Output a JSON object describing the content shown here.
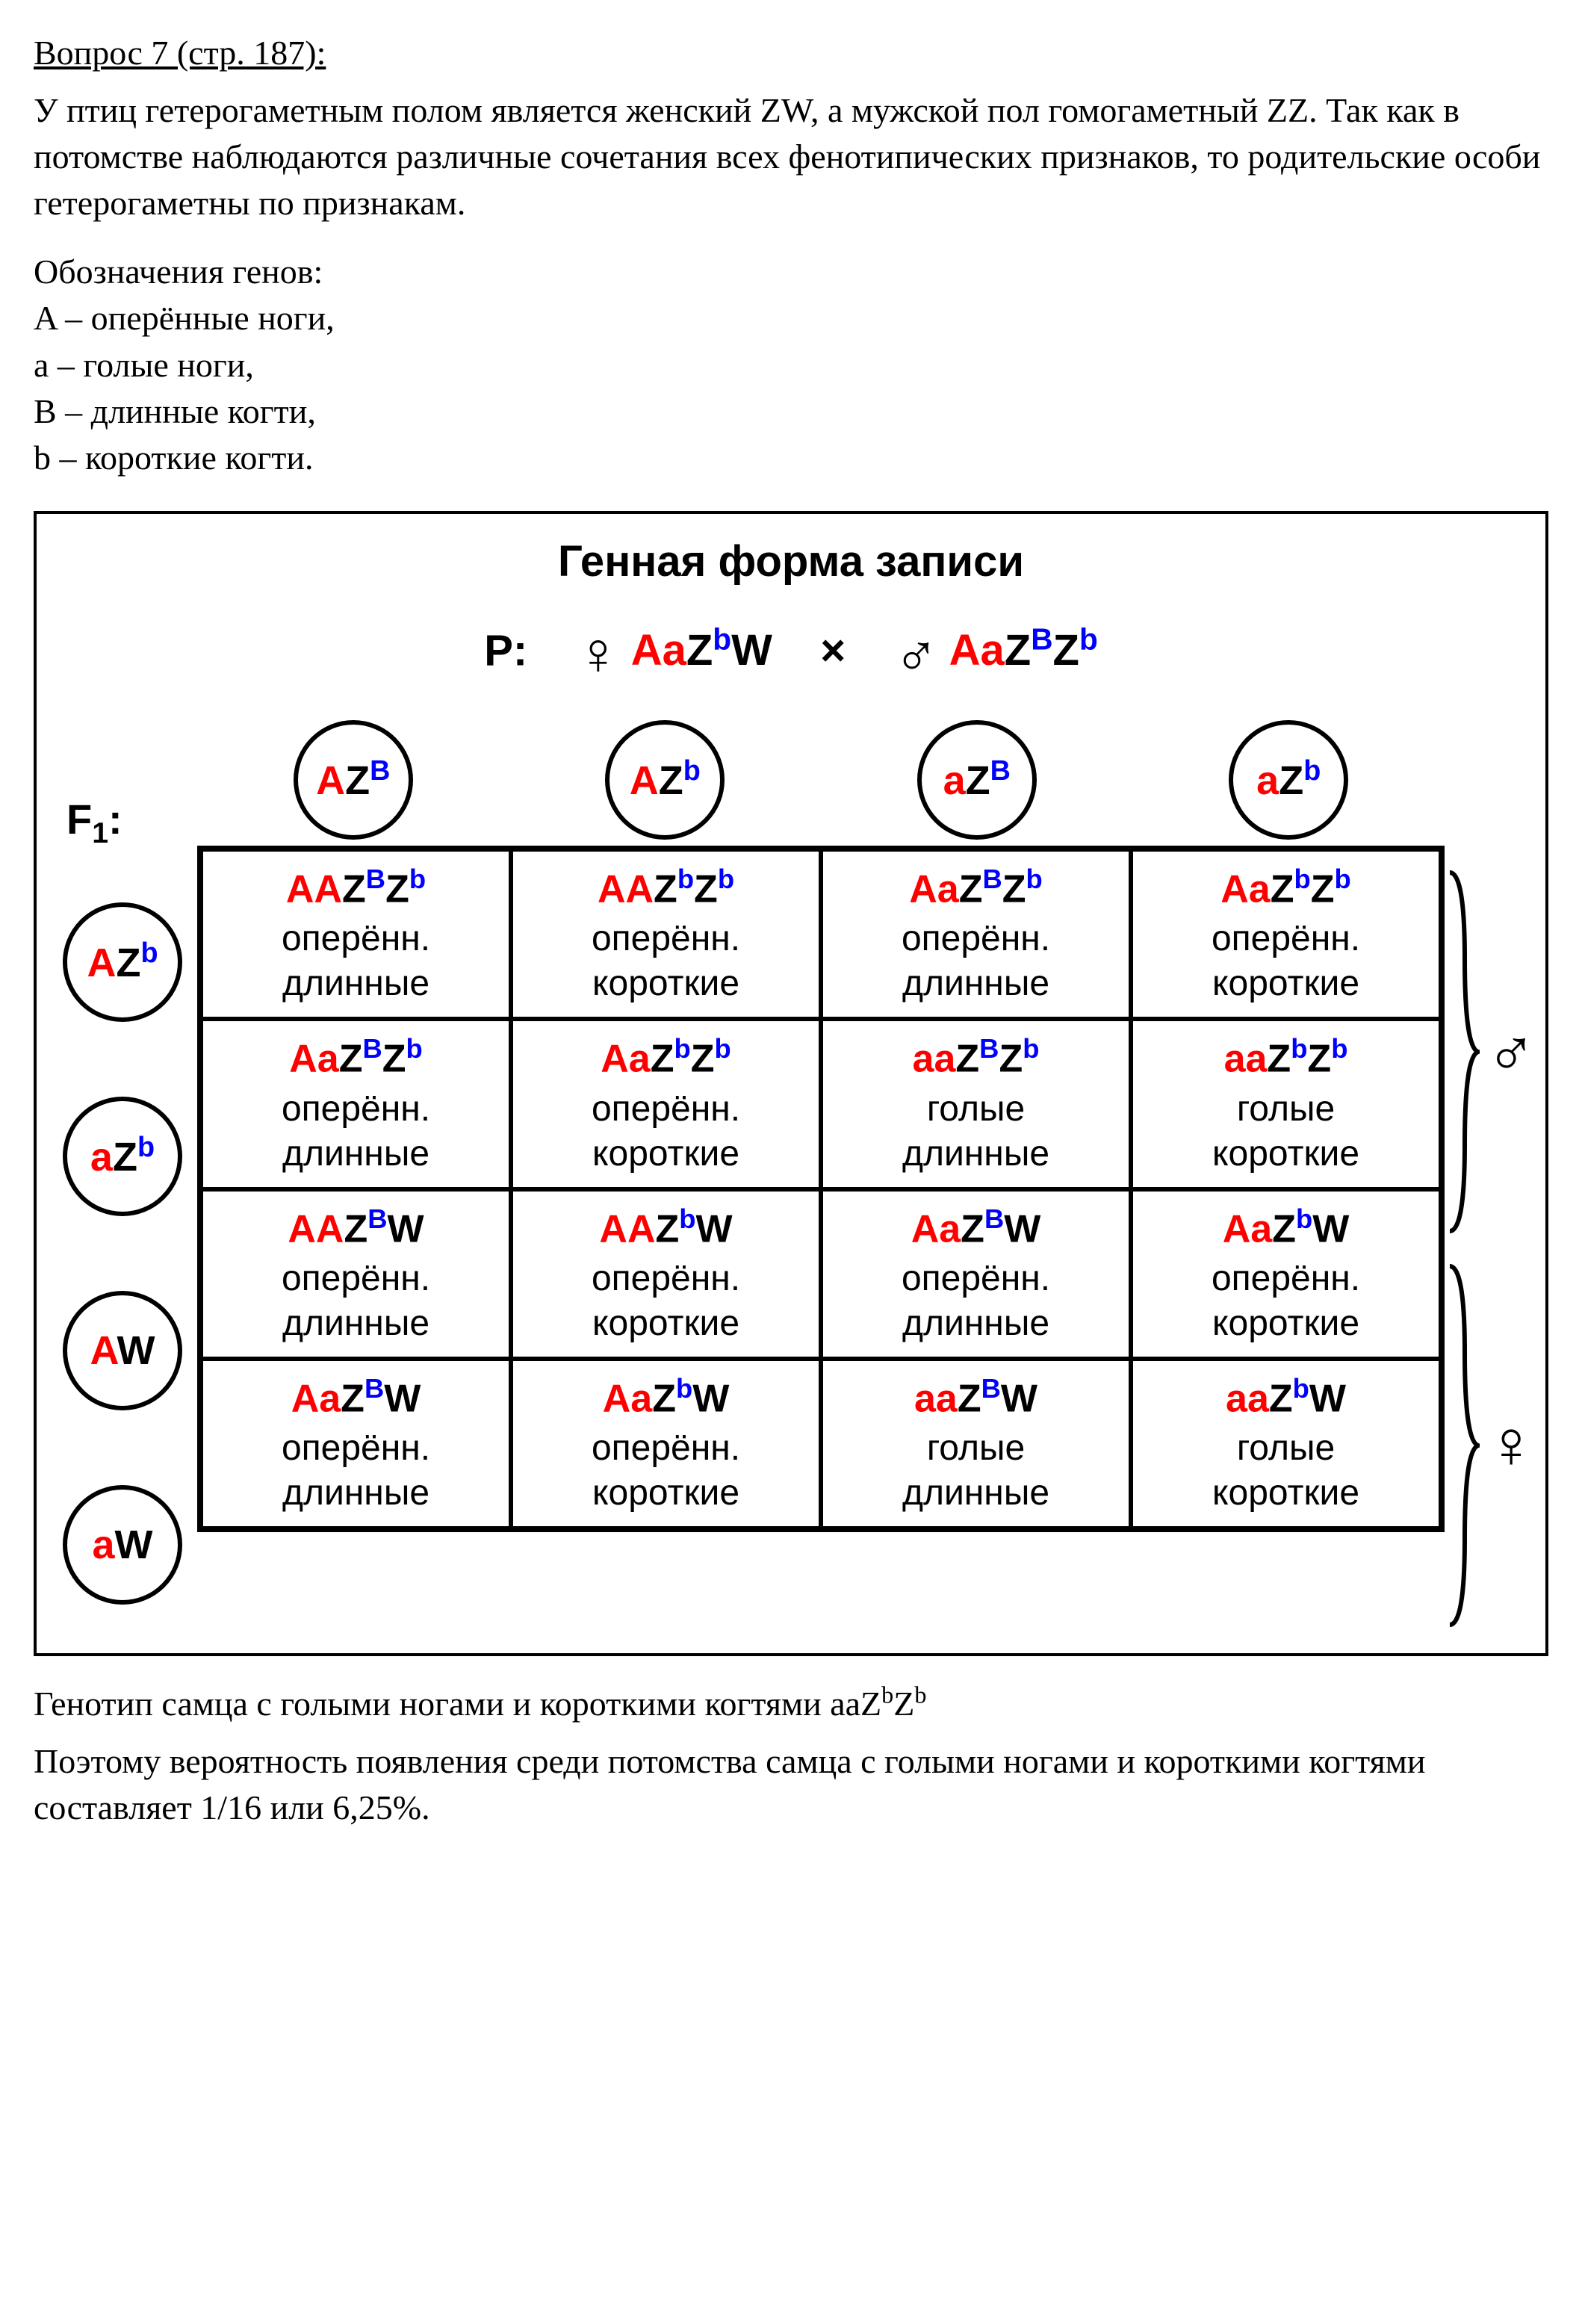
{
  "heading": "Вопрос 7 (стр. 187):",
  "intro": "У птиц гетерогаметным полом является женский ZW, а мужской пол гомогаметный ZZ. Так как в потомстве наблюдаются различные сочетания всех фенотипических признаков, то родительские особи гетерогаметны по признакам.",
  "defs_title": "Обозначения генов:",
  "defs": [
    "A – оперённые ноги,",
    "a – голые ноги,",
    "B – длинные когти,",
    "b – короткие когти."
  ],
  "diagram_title": "Генная форма записи",
  "parents": {
    "label": "P:",
    "female_geno": {
      "A": "A",
      "a": "a",
      "Z": "Z",
      "sup": "b",
      "W": "W"
    },
    "cross": "×",
    "male_geno": {
      "A": "A",
      "a": "a",
      "Z1": "Z",
      "sup1": "B",
      "Z2": "Z",
      "sup2": "b"
    }
  },
  "top_gametes": [
    {
      "a1": "A",
      "z": "Z",
      "sup": "B",
      "a1c": "red",
      "supc": "blue"
    },
    {
      "a1": "A",
      "z": "Z",
      "sup": "b",
      "a1c": "red",
      "supc": "blue"
    },
    {
      "a1": "a",
      "z": "Z",
      "sup": "B",
      "a1c": "red",
      "supc": "blue"
    },
    {
      "a1": "a",
      "z": "Z",
      "sup": "b",
      "a1c": "red",
      "supc": "blue"
    }
  ],
  "left_gametes": [
    {
      "a1": "A",
      "z": "Z",
      "sup": "b",
      "a1c": "red",
      "supc": "blue"
    },
    {
      "a1": "a",
      "z": "Z",
      "sup": "b",
      "a1c": "red",
      "supc": "blue"
    },
    {
      "a1": "A",
      "w": "W",
      "a1c": "red"
    },
    {
      "a1": "a",
      "w": "W",
      "a1c": "red"
    }
  ],
  "f1_label": "F",
  "f1_sub": "1",
  "cells": [
    [
      {
        "geno_html": "<span class='red'>AA</span>Z<sup class='blue'>B</sup>Z<sup class='blue'>b</sup>",
        "p1": "оперённ.",
        "p2": "длинные"
      },
      {
        "geno_html": "<span class='red'>AA</span>Z<sup class='blue'>b</sup>Z<sup class='blue'>b</sup>",
        "p1": "оперённ.",
        "p2": "короткие"
      },
      {
        "geno_html": "<span class='red'>Aa</span>Z<sup class='blue'>B</sup>Z<sup class='blue'>b</sup>",
        "p1": "оперённ.",
        "p2": "длинные"
      },
      {
        "geno_html": "<span class='red'>Aa</span>Z<sup class='blue'>b</sup>Z<sup class='blue'>b</sup>",
        "p1": "оперённ.",
        "p2": "короткие"
      }
    ],
    [
      {
        "geno_html": "<span class='red'>Aa</span>Z<sup class='blue'>B</sup>Z<sup class='blue'>b</sup>",
        "p1": "оперённ.",
        "p2": "длинные"
      },
      {
        "geno_html": "<span class='red'>Aa</span>Z<sup class='blue'>b</sup>Z<sup class='blue'>b</sup>",
        "p1": "оперённ.",
        "p2": "короткие"
      },
      {
        "geno_html": "<span class='red'>aa</span>Z<sup class='blue'>B</sup>Z<sup class='blue'>b</sup>",
        "p1": "голые",
        "p2": "длинные"
      },
      {
        "geno_html": "<span class='red'>aa</span>Z<sup class='blue'>b</sup>Z<sup class='blue'>b</sup>",
        "p1": "голые",
        "p2": "короткие"
      }
    ],
    [
      {
        "geno_html": "<span class='red'>AA</span>Z<sup class='blue'>B</sup>W",
        "p1": "оперённ.",
        "p2": "длинные"
      },
      {
        "geno_html": "<span class='red'>AA</span>Z<sup class='blue'>b</sup>W",
        "p1": "оперённ.",
        "p2": "короткие"
      },
      {
        "geno_html": "<span class='red'>Aa</span>Z<sup class='blue'>B</sup>W",
        "p1": "оперённ.",
        "p2": "длинные"
      },
      {
        "geno_html": "<span class='red'>Aa</span>Z<sup class='blue'>b</sup>W",
        "p1": "оперённ.",
        "p2": "короткие"
      }
    ],
    [
      {
        "geno_html": "<span class='red'>Aa</span>Z<sup class='blue'>B</sup>W",
        "p1": "оперённ.",
        "p2": "длинные"
      },
      {
        "geno_html": "<span class='red'>Aa</span>Z<sup class='blue'>b</sup>W",
        "p1": "оперённ.",
        "p2": "короткие"
      },
      {
        "geno_html": "<span class='red'>aa</span>Z<sup class='blue'>B</sup>W",
        "p1": "голые",
        "p2": "длинные"
      },
      {
        "geno_html": "<span class='red'>aa</span>Z<sup class='blue'>b</sup>W",
        "p1": "голые",
        "p2": "короткие"
      }
    ]
  ],
  "male_sym": "♂",
  "female_sym": "♀",
  "conclusion1_pre": "Генотип самца с голыми ногами и короткими когтями aaZ",
  "conclusion1_sup1": "b",
  "conclusion1_mid": "Z",
  "conclusion1_sup2": "b",
  "conclusion2": "Поэтому вероятность появления среди потомства самца с голыми ногами и короткими когтями составляет 1/16  или 6,25%.",
  "colors": {
    "red": "#ff0000",
    "blue": "#0000ff",
    "black": "#000000",
    "bg": "#ffffff"
  }
}
